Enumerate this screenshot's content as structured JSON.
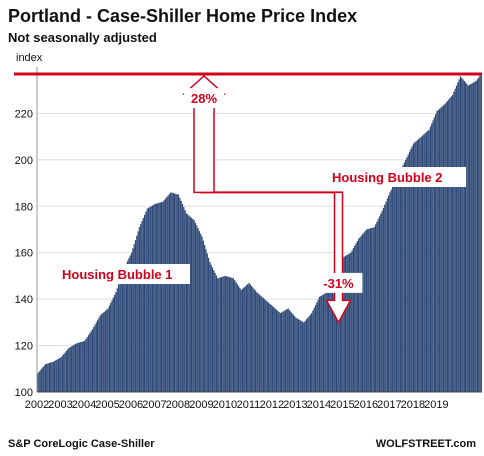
{
  "chart_data": {
    "type": "bar",
    "title": "Portland - Case-Shiller Home Price Index",
    "subtitle": "Not seasonally adjusted",
    "ylabel": "index",
    "ylim": [
      100,
      240
    ],
    "grid": true,
    "y_ticks": [
      "100",
      "120",
      "140",
      "160",
      "180",
      "200",
      "220"
    ],
    "x_tick_labels": [
      "2002",
      "2003",
      "2004",
      "2005",
      "2006",
      "2007",
      "2008",
      "2009",
      "2010",
      "2011",
      "2012",
      "2013",
      "2014",
      "2015",
      "2016",
      "2017",
      "2018",
      "2019"
    ],
    "bar_color": "#2f4a78",
    "accent_color": "#d0021b",
    "reference_line_value": 237,
    "annotations": [
      {
        "text": "28%"
      },
      {
        "text": "-31%"
      },
      {
        "text": "Housing Bubble 1"
      },
      {
        "text": "Housing Bubble 2"
      }
    ],
    "source": "S&P CoreLogic Case-Shiller",
    "brand": "WOLFSTREET.com",
    "keyframes": [
      [
        0,
        108
      ],
      [
        3,
        110
      ],
      [
        6,
        112
      ],
      [
        12,
        113
      ],
      [
        18,
        115
      ],
      [
        24,
        119
      ],
      [
        30,
        121
      ],
      [
        36,
        122
      ],
      [
        42,
        127
      ],
      [
        48,
        133
      ],
      [
        54,
        136
      ],
      [
        60,
        143
      ],
      [
        66,
        153
      ],
      [
        72,
        160
      ],
      [
        78,
        171
      ],
      [
        84,
        179
      ],
      [
        90,
        181
      ],
      [
        96,
        182
      ],
      [
        102,
        186
      ],
      [
        108,
        185
      ],
      [
        114,
        177
      ],
      [
        120,
        174
      ],
      [
        126,
        167
      ],
      [
        132,
        156
      ],
      [
        138,
        149
      ],
      [
        144,
        150
      ],
      [
        150,
        149
      ],
      [
        156,
        144
      ],
      [
        162,
        147
      ],
      [
        168,
        143
      ],
      [
        174,
        140
      ],
      [
        180,
        137
      ],
      [
        186,
        134
      ],
      [
        192,
        136
      ],
      [
        198,
        132
      ],
      [
        204,
        130
      ],
      [
        210,
        134
      ],
      [
        216,
        141
      ],
      [
        222,
        143
      ],
      [
        228,
        150
      ],
      [
        234,
        158
      ],
      [
        240,
        160
      ],
      [
        246,
        166
      ],
      [
        252,
        170
      ],
      [
        258,
        171
      ],
      [
        264,
        178
      ],
      [
        270,
        186
      ],
      [
        276,
        193
      ],
      [
        282,
        200
      ],
      [
        288,
        207
      ],
      [
        294,
        210
      ],
      [
        300,
        213
      ],
      [
        306,
        221
      ],
      [
        312,
        224
      ],
      [
        318,
        228
      ],
      [
        324,
        236
      ],
      [
        330,
        232
      ],
      [
        336,
        234
      ],
      [
        340,
        237
      ]
    ]
  }
}
